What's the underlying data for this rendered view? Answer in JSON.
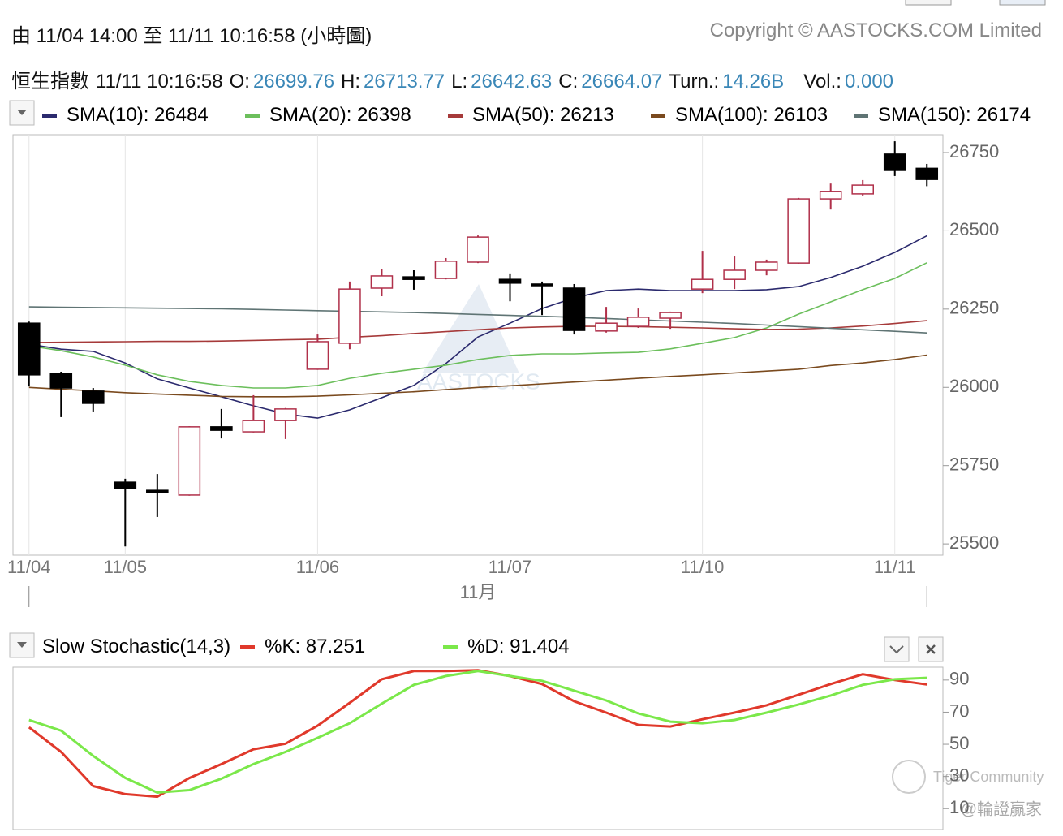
{
  "header": {
    "range": "由  11/04 14:00 至  11/11 10:16:58 (小時圖)",
    "copyright": "Copyright © AASTOCKS.COM Limited",
    "quote": {
      "name": "恒生指數",
      "time": "11/11 10:16:58",
      "fields": [
        {
          "label": "O:",
          "value": "26699.76"
        },
        {
          "label": "H:",
          "value": "26713.77"
        },
        {
          "label": "L:",
          "value": "26642.63"
        },
        {
          "label": "C:",
          "value": "26664.07"
        },
        {
          "label": "Turn.:",
          "value": "14.26B"
        },
        {
          "label": "Vol.:",
          "value": "0.000"
        }
      ]
    }
  },
  "watermarks": [
    "AASTOCKS",
    "Tiger Community",
    "@輪證贏家"
  ],
  "chart_data": [
    {
      "type": "candlestick",
      "xlabel": "11月",
      "categories": [
        "11/04",
        null,
        null,
        "11/05",
        null,
        null,
        null,
        null,
        null,
        "11/06",
        null,
        null,
        null,
        null,
        null,
        "11/07",
        null,
        null,
        null,
        null,
        null,
        "11/10",
        null,
        null,
        null,
        null,
        null,
        "11/11",
        null
      ],
      "open": [
        26205,
        26045,
        25988,
        25697,
        25671,
        25656,
        25874,
        25858,
        25894,
        26058,
        26141,
        26317,
        26353,
        26348,
        26400,
        26345,
        26330,
        26317,
        26180,
        26195,
        26221,
        26314,
        26345,
        26374,
        26397,
        26602,
        26618,
        26745,
        26699.76
      ],
      "high": [
        26210,
        26050,
        25998,
        25708,
        25723,
        25876,
        25931,
        25975,
        25934,
        26169,
        26338,
        26377,
        26374,
        26413,
        26485,
        26364,
        26338,
        26330,
        26257,
        26252,
        26242,
        26436,
        26418,
        26408,
        26605,
        26651,
        26662,
        26786,
        26713.77
      ],
      "low": [
        26003,
        25905,
        25923,
        25492,
        25586,
        25654,
        25837,
        25856,
        25835,
        26056,
        26122,
        26291,
        26312,
        26345,
        26397,
        26275,
        26231,
        26169,
        26175,
        26190,
        26187,
        26301,
        26314,
        26358,
        26395,
        26568,
        26610,
        26675,
        26642.63
      ],
      "close": [
        26040,
        25998,
        25949,
        25676,
        25663,
        25874,
        25863,
        25894,
        25931,
        26146,
        26314,
        26356,
        26345,
        26403,
        26480,
        26333,
        26325,
        26182,
        26205,
        26224,
        26239,
        26345,
        26374,
        26400,
        26602,
        26626,
        26646,
        26693,
        26664.07
      ],
      "up_color": "#b0304a",
      "down_color": "#000000",
      "series": [
        {
          "name": "SMA(10)",
          "legend": "SMA(10): 26484",
          "color": "#2b2a6e",
          "values": [
            26138,
            26122,
            26115,
            26078,
            26027,
            25998,
            25970,
            25941,
            25915,
            25902,
            25928,
            25967,
            26006,
            26076,
            26161,
            26205,
            26252,
            26286,
            26309,
            26314,
            26309,
            26309,
            26309,
            26312,
            26322,
            26351,
            26387,
            26431,
            26484
          ]
        },
        {
          "name": "SMA(20)",
          "legend": "SMA(20): 26398",
          "color": "#6cbf5c",
          "values": [
            26133,
            26117,
            26097,
            26071,
            26040,
            26019,
            26006,
            25998,
            25998,
            26006,
            26029,
            26045,
            26058,
            26071,
            26089,
            26102,
            26107,
            26107,
            26110,
            26112,
            26123,
            26141,
            26159,
            26190,
            26234,
            26273,
            26312,
            26348,
            26398
          ]
        },
        {
          "name": "SMA(50)",
          "legend": "SMA(50): 26213",
          "color": "#a63a3a",
          "values": [
            26143,
            26144,
            26145,
            26146,
            26147,
            26147,
            26148,
            26150,
            26152,
            26154,
            26160,
            26165,
            26172,
            26178,
            26184,
            26190,
            26193,
            26195,
            26195,
            26194,
            26192,
            26190,
            26187,
            26185,
            26186,
            26190,
            26196,
            26204,
            26213
          ]
        },
        {
          "name": "SMA(100)",
          "legend": "SMA(100): 26103",
          "color": "#7a4a1e",
          "values": [
            26000,
            25994,
            25989,
            25983,
            25979,
            25975,
            25971,
            25970,
            25970,
            25972,
            25976,
            25981,
            25986,
            25993,
            26000,
            26005,
            26011,
            26017,
            26023,
            26029,
            26035,
            26040,
            26046,
            26052,
            26058,
            26070,
            26078,
            26089,
            26103
          ]
        },
        {
          "name": "SMA(150)",
          "legend": "SMA(150): 26174",
          "color": "#5f7474",
          "values": [
            26257,
            26256,
            26255,
            26254,
            26253,
            26252,
            26251,
            26249,
            26247,
            26245,
            26243,
            26241,
            26239,
            26236,
            26233,
            26230,
            26227,
            26224,
            26220,
            26216,
            26212,
            26208,
            26204,
            26199,
            26194,
            26189,
            26184,
            26179,
            26174
          ]
        }
      ],
      "ylim": [
        25464,
        26807
      ],
      "yticks": [
        25500,
        25750,
        26000,
        26250,
        26500,
        26750
      ],
      "grid": "x"
    },
    {
      "type": "line",
      "title": "Slow Stochastic(14,3)",
      "series": [
        {
          "name": "%K",
          "legend": "%K: 87.251",
          "color": "#e0392b",
          "values": [
            60.6,
            45.3,
            24,
            19,
            17.4,
            29,
            37.7,
            46.9,
            50.4,
            61.6,
            75.8,
            90.5,
            95.6,
            95.6,
            96.1,
            92.5,
            87.5,
            76.8,
            69.7,
            62.1,
            61.1,
            65.6,
            69.7,
            74.3,
            80.9,
            87.5,
            93.6,
            90,
            87.251
          ]
        },
        {
          "name": "%D",
          "legend": "%D: 91.404",
          "color": "#7be84a",
          "values": [
            65.1,
            58.5,
            42.8,
            29.1,
            20,
            21.5,
            28.6,
            37.7,
            45.3,
            54,
            63.1,
            75.3,
            87,
            92.5,
            95.6,
            92.5,
            89.5,
            83.4,
            77.3,
            69.2,
            64.1,
            63.1,
            65.1,
            69.7,
            74.8,
            80.4,
            87,
            90.5,
            91.404
          ]
        }
      ],
      "ylim": [
        -3,
        98
      ],
      "yticks": [
        10,
        30,
        50,
        70,
        90
      ]
    }
  ]
}
